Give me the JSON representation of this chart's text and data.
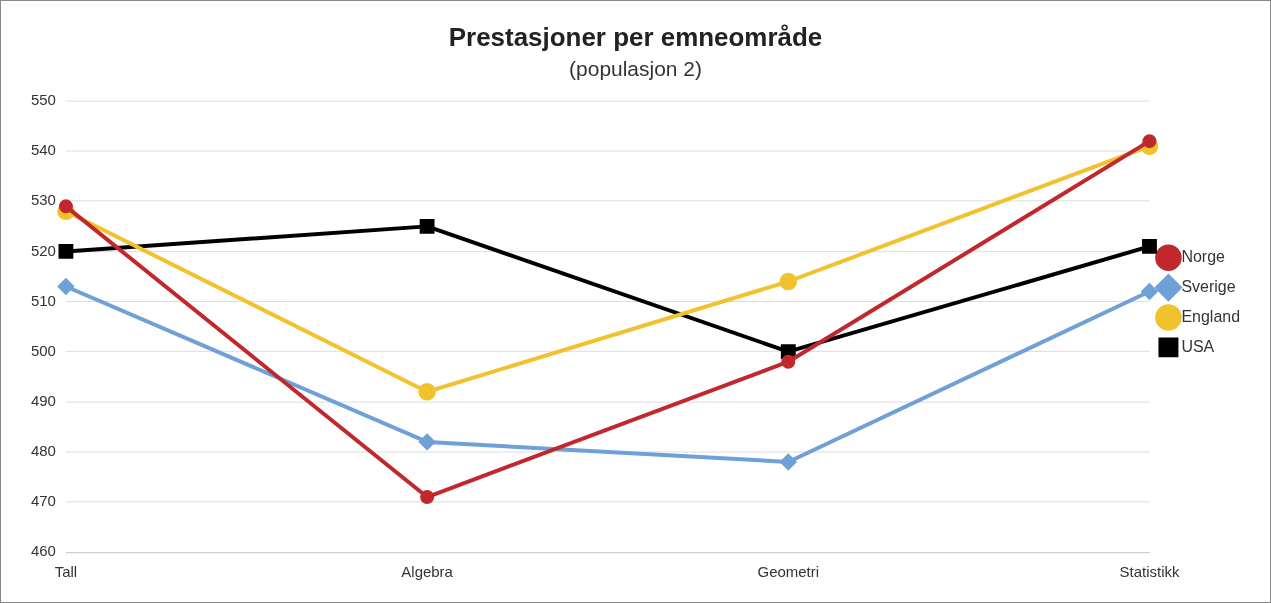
{
  "chart_data": {
    "type": "line",
    "title": "Prestasjoner per emneområde",
    "subtitle": "(populasjon 2)",
    "categories": [
      "Tall",
      "Algebra",
      "Geometri",
      "Statistikk"
    ],
    "series": [
      {
        "name": "Norge",
        "color": "#c0282d",
        "marker": "circle",
        "values": [
          529,
          471,
          498,
          542
        ]
      },
      {
        "name": "Sverige",
        "color": "#6fa0d8",
        "marker": "diamond",
        "values": [
          513,
          482,
          478,
          512
        ]
      },
      {
        "name": "England",
        "color": "#f2c12e",
        "marker": "circle",
        "values": [
          528,
          492,
          514,
          541
        ]
      },
      {
        "name": "USA",
        "color": "#000000",
        "marker": "square",
        "values": [
          520,
          525,
          500,
          521
        ]
      }
    ],
    "ylim": [
      460,
      550
    ],
    "yticks": [
      460,
      470,
      480,
      490,
      500,
      510,
      520,
      530,
      540,
      550
    ],
    "grid": "y",
    "legend": "right",
    "line_style": "solid"
  }
}
